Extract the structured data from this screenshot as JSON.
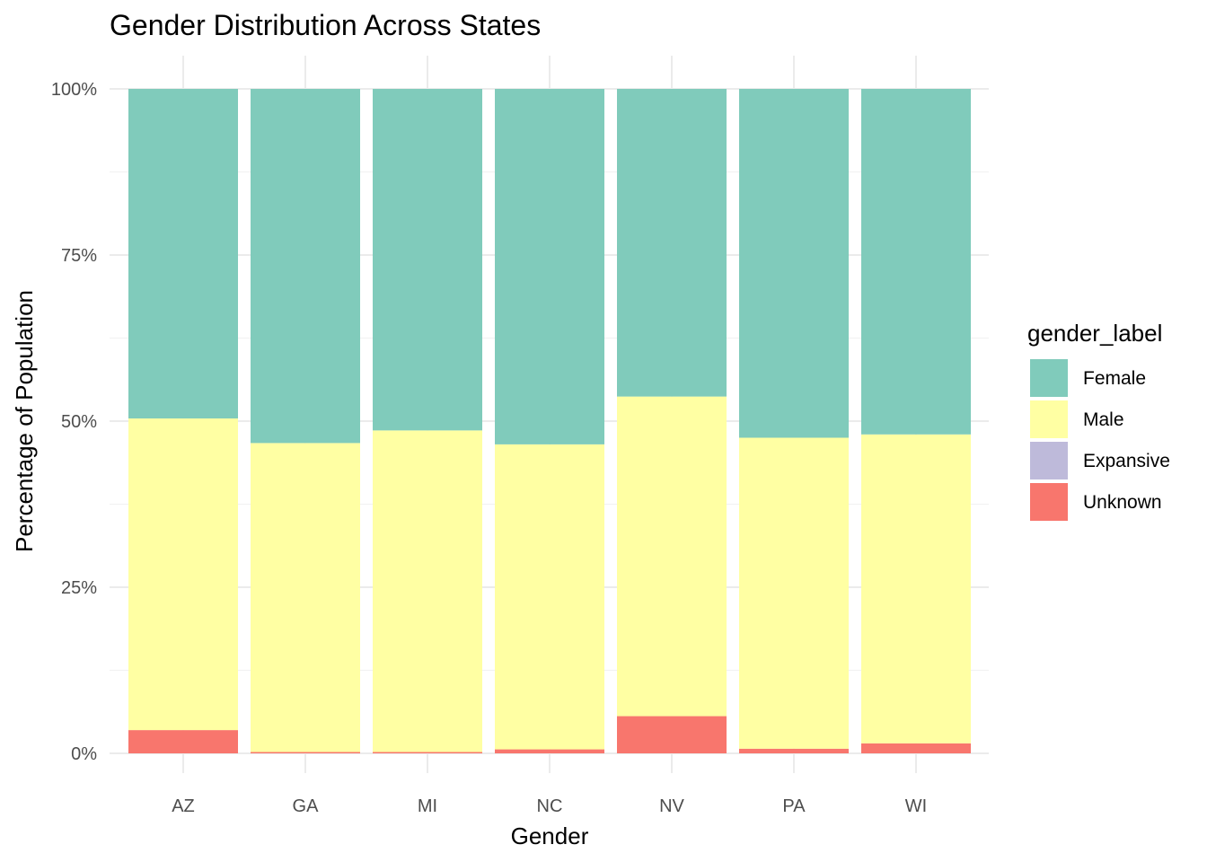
{
  "chart_data": {
    "type": "bar",
    "stacked": true,
    "title": "Gender Distribution Across States",
    "xlabel": "Gender",
    "ylabel": "Percentage of Population",
    "categories": [
      "AZ",
      "GA",
      "MI",
      "NC",
      "NV",
      "PA",
      "WI"
    ],
    "y_ticks": [
      "0%",
      "25%",
      "50%",
      "75%",
      "100%"
    ],
    "ylim": [
      0,
      100
    ],
    "grid": true,
    "legend": {
      "title": "gender_label",
      "position": "right",
      "entries": [
        "Female",
        "Male",
        "Expansive",
        "Unknown"
      ]
    },
    "series": [
      {
        "name": "Unknown",
        "color": "#F8766D",
        "values": [
          3.5,
          0.2,
          0.2,
          0.6,
          5.6,
          0.7,
          1.5
        ]
      },
      {
        "name": "Expansive",
        "color": "#BEBADA",
        "values": [
          0,
          0,
          0,
          0,
          0,
          0,
          0
        ]
      },
      {
        "name": "Male",
        "color": "#FFFFA3",
        "values": [
          46.9,
          46.5,
          48.4,
          45.9,
          48.1,
          46.8,
          46.5
        ]
      },
      {
        "name": "Female",
        "color": "#80CBBB",
        "values": [
          49.6,
          53.3,
          51.4,
          53.5,
          46.3,
          52.5,
          52.0
        ]
      }
    ]
  }
}
